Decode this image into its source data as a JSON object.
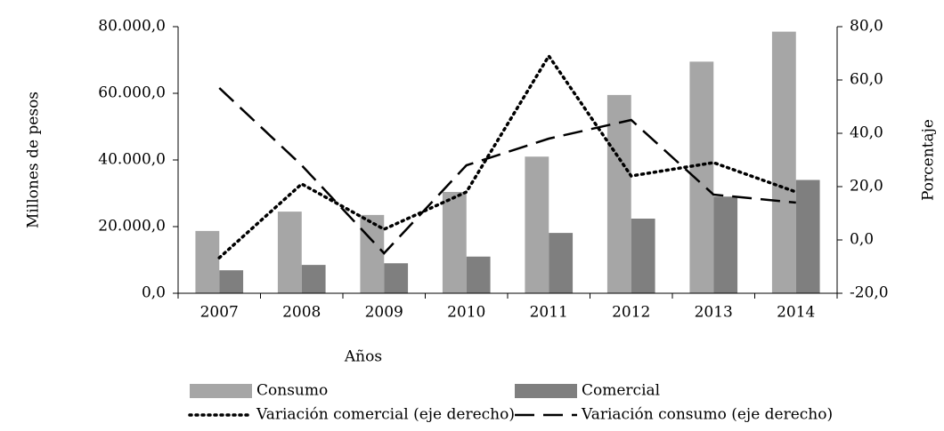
{
  "chart_data": {
    "type": "bar",
    "categories": [
      "2007",
      "2008",
      "2009",
      "2010",
      "2011",
      "2012",
      "2013",
      "2014"
    ],
    "series": [
      {
        "name": "Consumo",
        "kind": "bar",
        "color": "#a6a6a6",
        "values": [
          18700,
          24500,
          23500,
          30400,
          41000,
          59500,
          69500,
          78500
        ]
      },
      {
        "name": "Comercial",
        "kind": "bar",
        "color": "#7f7f7f",
        "values": [
          6900,
          8500,
          9000,
          11000,
          18100,
          22400,
          29000,
          34000
        ]
      },
      {
        "name": "Variación comercial (eje derecho)",
        "kind": "line",
        "dash": "dotted",
        "color": "#000000",
        "axis": "y2",
        "values": [
          -6.7,
          21,
          4,
          18,
          69,
          24,
          29,
          18
        ]
      },
      {
        "name": "Variación consumo (eje derecho)",
        "kind": "line",
        "dash": "dashed",
        "color": "#000000",
        "axis": "y2",
        "values": [
          57,
          28,
          -5,
          28,
          38,
          45,
          17,
          14
        ]
      }
    ],
    "xlabel": "Años",
    "ylabel": "Millones de pesos",
    "y2label": "Porcentaje",
    "ylim": [
      0,
      80000
    ],
    "yticks": [
      {
        "value": 0,
        "label": "0,0"
      },
      {
        "value": 20000,
        "label": "20.000,0"
      },
      {
        "value": 40000,
        "label": "40.000,0"
      },
      {
        "value": 60000,
        "label": "60.000,0"
      },
      {
        "value": 80000,
        "label": "80.000,0"
      }
    ],
    "y2lim": [
      -20,
      80
    ],
    "y2ticks": [
      {
        "value": -20,
        "label": "-20,0"
      },
      {
        "value": 0,
        "label": "0,0"
      },
      {
        "value": 20,
        "label": "20,0"
      },
      {
        "value": 40,
        "label": "40,0"
      },
      {
        "value": 60,
        "label": "60,0"
      },
      {
        "value": 80,
        "label": "80,0"
      }
    ],
    "grid": false,
    "legend": "bottom"
  }
}
